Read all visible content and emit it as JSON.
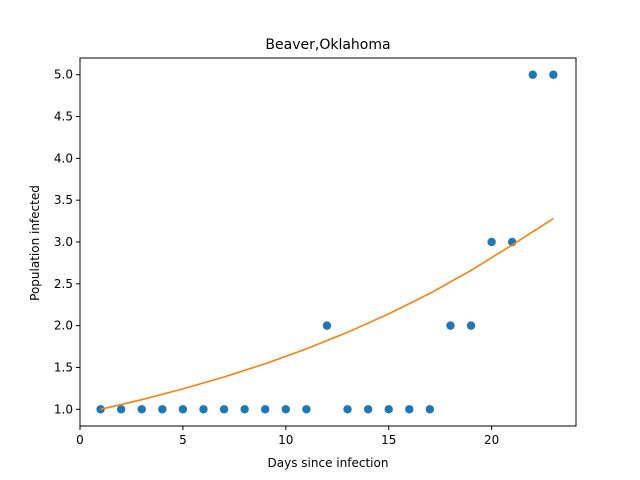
{
  "chart_data": {
    "type": "scatter",
    "title": "Beaver,Oklahoma",
    "xlabel": "Days since infection",
    "ylabel": "Population infected",
    "xlim": [
      0,
      24.1
    ],
    "ylim": [
      0.8,
      5.2
    ],
    "xticks": [
      0,
      5,
      10,
      15,
      20
    ],
    "xtick_labels": [
      "0",
      "5",
      "10",
      "15",
      "20"
    ],
    "yticks": [
      1.0,
      1.5,
      2.0,
      2.5,
      3.0,
      3.5,
      4.0,
      4.5,
      5.0
    ],
    "ytick_labels": [
      "1.0",
      "1.5",
      "2.0",
      "2.5",
      "3.0",
      "3.5",
      "4.0",
      "4.5",
      "5.0"
    ],
    "grid": false,
    "series": [
      {
        "type": "scatter",
        "color": "#1f77b4",
        "x": [
          1,
          2,
          3,
          4,
          5,
          6,
          7,
          8,
          9,
          10,
          11,
          12,
          13,
          14,
          15,
          16,
          17,
          18,
          19,
          20,
          21,
          22,
          23
        ],
        "y": [
          1,
          1,
          1,
          1,
          1,
          1,
          1,
          1,
          1,
          1,
          1,
          2,
          1,
          1,
          1,
          1,
          1,
          2,
          2,
          3,
          3,
          5,
          5
        ]
      },
      {
        "type": "line",
        "color": "#ff7f0e",
        "x": [
          1,
          3,
          5,
          7,
          9,
          11,
          13,
          15,
          17,
          19,
          21,
          23
        ],
        "y": [
          1.0,
          1.115,
          1.243,
          1.386,
          1.545,
          1.722,
          1.92,
          2.14,
          2.386,
          2.66,
          2.965,
          3.28
        ]
      }
    ]
  }
}
